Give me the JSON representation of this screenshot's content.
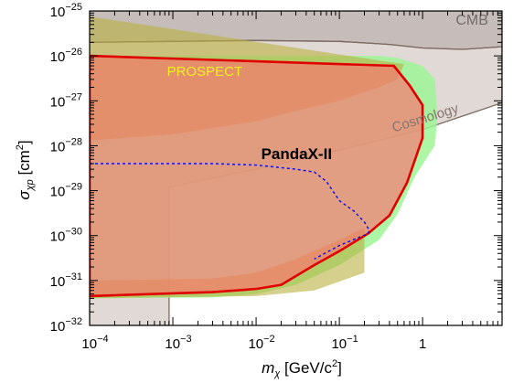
{
  "chart_data": {
    "type": "area",
    "title": "",
    "x_scale": "log",
    "y_scale": "log",
    "xlim": [
      0.0001,
      9
    ],
    "ylim": [
      1e-32,
      1e-25
    ],
    "x_ticks": [
      {
        "value": 0.0001,
        "base": "10",
        "exp": "−4"
      },
      {
        "value": 0.001,
        "base": "10",
        "exp": "−3"
      },
      {
        "value": 0.01,
        "base": "10",
        "exp": "−2"
      },
      {
        "value": 0.1,
        "base": "10",
        "exp": "−1"
      },
      {
        "value": 1,
        "base": "1",
        "exp": ""
      }
    ],
    "y_ticks": [
      {
        "value": 1e-32,
        "base": "10",
        "exp": "−32"
      },
      {
        "value": 1e-31,
        "base": "10",
        "exp": "−31"
      },
      {
        "value": 1e-30,
        "base": "10",
        "exp": "−30"
      },
      {
        "value": 1e-29,
        "base": "10",
        "exp": "−29"
      },
      {
        "value": 1e-28,
        "base": "10",
        "exp": "−28"
      },
      {
        "value": 1e-27,
        "base": "10",
        "exp": "−27"
      },
      {
        "value": 1e-26,
        "base": "10",
        "exp": "−26"
      },
      {
        "value": 1e-25,
        "base": "10",
        "exp": "−25"
      }
    ],
    "xlabel": {
      "main": "m",
      "sub": "χ",
      "units": " [GeV/c",
      "units_sup": "2",
      "units_end": "]"
    },
    "ylabel": {
      "main": "σ",
      "sub": "χp",
      "units": " [cm",
      "units_sup": "2",
      "units_end": "]"
    },
    "regions": [
      {
        "name": "CMB",
        "fill": "#b3a5a2",
        "fill_opacity": 0.75,
        "stroke": "#6d6360",
        "stroke_width": 1.3,
        "points": [
          [
            0.0001,
            1e-25
          ],
          [
            9,
            1e-25
          ],
          [
            9,
            1.6e-26
          ],
          [
            3,
            1.4e-26
          ],
          [
            1,
            1.5e-26
          ],
          [
            0.4,
            1.8e-26
          ],
          [
            0.1,
            2.1e-26
          ],
          [
            0.01,
            2.2e-26
          ],
          [
            0.001,
            2.1e-26
          ],
          [
            0.0001,
            2e-26
          ]
        ]
      },
      {
        "name": "Cosmology",
        "fill": "#c6b9b5",
        "fill_opacity": 0.55,
        "stroke": "#7d6a60",
        "stroke_width": 1.3,
        "points": [
          [
            0.0009,
            1e-32
          ],
          [
            0.0009,
            1.2e-29
          ],
          [
            0.01,
            3e-29
          ],
          [
            0.1,
            8e-29
          ],
          [
            1,
            2.3e-28
          ],
          [
            9,
            9e-28
          ],
          [
            9,
            1.6e-26
          ],
          [
            3,
            1.4e-26
          ],
          [
            1,
            1.5e-26
          ],
          [
            0.4,
            1.8e-26
          ],
          [
            0.1,
            2.1e-26
          ],
          [
            0.01,
            2.2e-26
          ],
          [
            0.001,
            2.1e-26
          ],
          [
            0.0001,
            2e-26
          ],
          [
            0.0001,
            1e-32
          ]
        ]
      },
      {
        "name": "light-green-region",
        "fill": "#9df596",
        "fill_opacity": 0.85,
        "stroke": "none",
        "stroke_width": 0,
        "points": [
          [
            0.0001,
            4e-32
          ],
          [
            0.003,
            4.2e-32
          ],
          [
            0.01,
            5e-32
          ],
          [
            0.03,
            8e-32
          ],
          [
            0.1,
            2.2e-31
          ],
          [
            0.3,
            8e-31
          ],
          [
            0.5,
            3e-30
          ],
          [
            0.8,
            2e-29
          ],
          [
            1.4,
            1e-28
          ],
          [
            1.5,
            4e-28
          ],
          [
            1.4,
            3e-27
          ],
          [
            1,
            6e-27
          ],
          [
            0.5,
            9e-27
          ],
          [
            0.3,
            1e-26
          ],
          [
            0.0001,
            1e-26
          ]
        ]
      },
      {
        "name": "PROSPECT",
        "fill": "#b9b040",
        "fill_opacity": 0.6,
        "stroke": "none",
        "stroke_width": 0,
        "points": [
          [
            0.0001,
            7.5e-26
          ],
          [
            0.6,
            6.5e-27
          ],
          [
            0.5,
            3e-27
          ],
          [
            0.3,
            2e-27
          ],
          [
            0.1,
            1e-27
          ],
          [
            0.03,
            6e-28
          ],
          [
            0.01,
            3.5e-28
          ],
          [
            0.001,
            1.8e-28
          ],
          [
            0.0001,
            1.3e-28
          ],
          [
            0.0001,
            1e-31
          ],
          [
            0.003,
            1.1e-31
          ],
          [
            0.01,
            1.5e-31
          ],
          [
            0.03,
            3e-31
          ],
          [
            0.1,
            8e-31
          ],
          [
            0.2,
            1.5e-30
          ],
          [
            0.2,
            1.5e-31
          ],
          [
            0.05,
            6e-32
          ],
          [
            0.01,
            4.5e-32
          ],
          [
            0.0001,
            4e-32
          ]
        ]
      },
      {
        "name": "PandaX-II",
        "fill": "#ff6f6f",
        "fill_opacity": 0.65,
        "stroke": "#e00000",
        "stroke_width": 2.6,
        "points": [
          [
            0.0001,
            1e-26
          ],
          [
            0.45,
            6e-27
          ],
          [
            0.7,
            2.2e-27
          ],
          [
            1,
            8e-28
          ],
          [
            1,
            1.5e-28
          ],
          [
            0.65,
            1.5e-29
          ],
          [
            0.4,
            2.8e-30
          ],
          [
            0.22,
            1.1e-30
          ],
          [
            0.1,
            4.5e-31
          ],
          [
            0.05,
            2.2e-31
          ],
          [
            0.02,
            8e-32
          ],
          [
            0.01,
            6.5e-32
          ],
          [
            0.003,
            5.5e-32
          ],
          [
            0.0001,
            4.5e-32
          ]
        ]
      }
    ],
    "lines": [
      {
        "name": "PandaX-II-blue-dashed",
        "stroke": "#1010e0",
        "dash": "3,3",
        "stroke_width": 1.5,
        "points": [
          [
            0.0001,
            4e-29
          ],
          [
            0.003,
            4e-29
          ],
          [
            0.01,
            3.7e-29
          ],
          [
            0.03,
            3e-29
          ],
          [
            0.05,
            2.6e-29
          ],
          [
            0.07,
            1.6e-29
          ],
          [
            0.1,
            6e-30
          ],
          [
            0.15,
            3.5e-30
          ],
          [
            0.2,
            2e-30
          ],
          [
            0.23,
            1.3e-30
          ],
          [
            0.22,
            1.1e-30
          ],
          [
            0.1,
            6e-31
          ],
          [
            0.05,
            3e-31
          ]
        ]
      }
    ],
    "annotations": [
      {
        "text": "CMB",
        "x": 2.5,
        "y": 5e-26,
        "color": "#6e6e6e",
        "size": 16,
        "weight": "normal",
        "rotate": 0
      },
      {
        "text": "PROSPECT",
        "x": 0.00085,
        "y": 3.6e-27,
        "color": "#f5ee20",
        "size": 15,
        "weight": "normal",
        "rotate": 0
      },
      {
        "text": "Cosmology",
        "x": 0.45,
        "y": 2e-28,
        "color": "#8a746b",
        "size": 15,
        "weight": "normal",
        "rotate": -17
      },
      {
        "text": "PandaX-II",
        "x": 0.0115,
        "y": 5e-29,
        "color": "#000000",
        "size": 17,
        "weight": "bold",
        "rotate": 0
      }
    ]
  }
}
